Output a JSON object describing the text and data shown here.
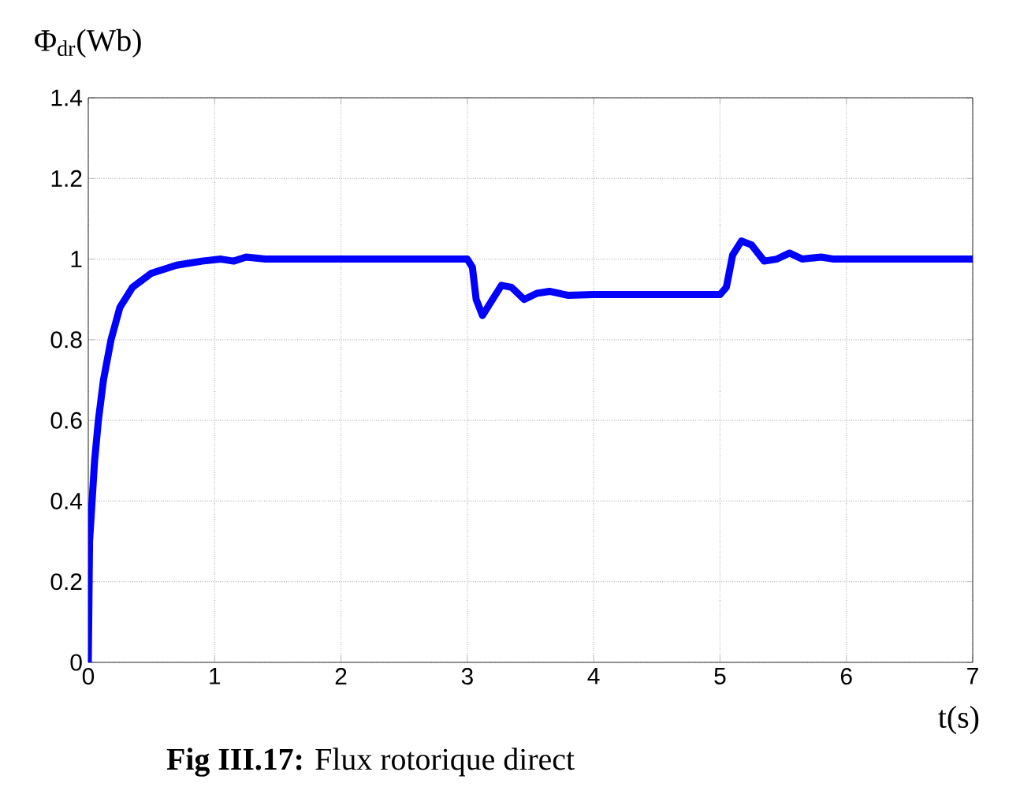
{
  "chart_data": {
    "type": "line",
    "ylabel": "Φ$_{dr}$(Wb)",
    "xlabel": "t(s)",
    "annotations": [
      "**Fig III.17:** Flux rotorique direct"
    ],
    "xlim": [
      0,
      7
    ],
    "ylim": [
      0,
      1.4
    ],
    "xticks": [
      0,
      1,
      2,
      3,
      4,
      5,
      6,
      7
    ],
    "yticks": [
      0,
      0.2,
      0.4,
      0.6,
      0.8,
      1,
      1.2,
      1.4
    ],
    "grid": true,
    "marker": "none",
    "line_style": "solid",
    "series": [
      {
        "color": "#0000ff",
        "x": [
          0,
          0.01,
          0.03,
          0.05,
          0.08,
          0.12,
          0.18,
          0.25,
          0.35,
          0.5,
          0.7,
          0.9,
          1.05,
          1.15,
          1.25,
          1.4,
          3.0,
          3.04,
          3.07,
          3.12,
          3.2,
          3.27,
          3.35,
          3.45,
          3.55,
          3.65,
          3.8,
          4.0,
          4.5,
          5.0,
          5.05,
          5.1,
          5.17,
          5.25,
          5.35,
          5.45,
          5.55,
          5.65,
          5.8,
          5.9,
          7
        ],
        "values": [
          0,
          0.3,
          0.4,
          0.5,
          0.6,
          0.7,
          0.8,
          0.88,
          0.93,
          0.965,
          0.985,
          0.995,
          1.0,
          0.995,
          1.005,
          1.0,
          1.0,
          0.98,
          0.9,
          0.86,
          0.9,
          0.935,
          0.93,
          0.9,
          0.915,
          0.92,
          0.91,
          0.912,
          0.912,
          0.912,
          0.93,
          1.01,
          1.045,
          1.035,
          0.995,
          1.0,
          1.015,
          1.0,
          1.005,
          1.0,
          1.0
        ]
      }
    ]
  }
}
